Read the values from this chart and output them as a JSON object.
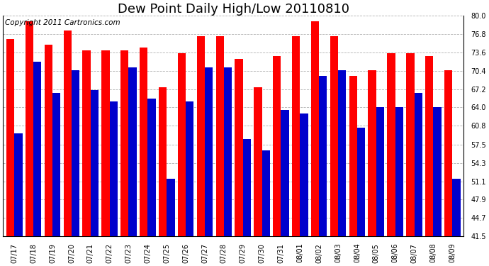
{
  "title": "Dew Point Daily High/Low 20110810",
  "copyright": "Copyright 2011 Cartronics.com",
  "dates": [
    "07/17",
    "07/18",
    "07/19",
    "07/20",
    "07/21",
    "07/22",
    "07/23",
    "07/24",
    "07/25",
    "07/26",
    "07/27",
    "07/28",
    "07/29",
    "07/30",
    "07/31",
    "08/01",
    "08/02",
    "08/03",
    "08/04",
    "08/05",
    "08/06",
    "08/07",
    "08/08",
    "08/09"
  ],
  "highs": [
    76.0,
    79.0,
    75.0,
    77.5,
    74.0,
    74.0,
    74.0,
    74.5,
    67.5,
    73.5,
    76.5,
    76.5,
    72.5,
    67.5,
    73.0,
    76.5,
    79.0,
    76.5,
    69.5,
    70.5,
    73.5,
    73.5,
    73.0,
    70.5
  ],
  "lows": [
    59.5,
    72.0,
    66.5,
    70.5,
    67.0,
    65.0,
    71.0,
    65.5,
    51.5,
    65.0,
    71.0,
    71.0,
    58.5,
    56.5,
    63.5,
    63.0,
    69.5,
    70.5,
    60.5,
    64.0,
    64.0,
    66.5,
    64.0,
    51.5
  ],
  "ymin": 41.5,
  "high_color": "#ff0000",
  "low_color": "#0000cc",
  "bg_color": "#ffffff",
  "grid_color": "#b0b0b0",
  "ylim": [
    41.5,
    80.0
  ],
  "yticks": [
    41.5,
    44.7,
    47.9,
    51.1,
    54.3,
    57.5,
    60.8,
    64.0,
    67.2,
    70.4,
    73.6,
    76.8,
    80.0
  ],
  "title_fontsize": 13,
  "copyright_fontsize": 7.5,
  "tick_fontsize": 7,
  "bar_width": 0.42
}
